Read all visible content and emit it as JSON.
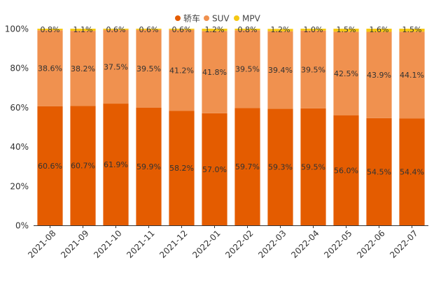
{
  "chart_data": {
    "type": "bar",
    "stacked": true,
    "percent_axis": true,
    "categories": [
      "2021-08",
      "2021-09",
      "2021-10",
      "2021-11",
      "2021-12",
      "2022-01",
      "2022-02",
      "2022-03",
      "2022-04",
      "2022-05",
      "2022-06",
      "2022-07"
    ],
    "series": [
      {
        "name": "轿车",
        "color": "#e45c00",
        "values": [
          60.6,
          60.7,
          61.9,
          59.9,
          58.2,
          57.0,
          59.7,
          59.3,
          59.5,
          56.0,
          54.5,
          54.4
        ],
        "labels": [
          "60.6%",
          "60.7%",
          "61.9%",
          "59.9%",
          "58.2%",
          "57.0%",
          "59.7%",
          "59.3%",
          "59.5%",
          "56.0%",
          "54.5%",
          "54.4%"
        ]
      },
      {
        "name": "SUV",
        "color": "#f0914f",
        "values": [
          38.6,
          38.2,
          37.5,
          39.5,
          41.2,
          41.8,
          39.5,
          39.4,
          39.5,
          42.5,
          43.9,
          44.1
        ],
        "labels": [
          "38.6%",
          "38.2%",
          "37.5%",
          "39.5%",
          "41.2%",
          "41.8%",
          "39.5%",
          "39.4%",
          "39.5%",
          "42.5%",
          "43.9%",
          "44.1%"
        ]
      },
      {
        "name": "MPV",
        "color": "#f5c814",
        "values": [
          0.8,
          1.1,
          0.6,
          0.6,
          0.6,
          1.2,
          0.8,
          1.2,
          1.0,
          1.5,
          1.6,
          1.5
        ],
        "labels": [
          "0.8%",
          "1.1%",
          "0.6%",
          "0.6%",
          "0.6%",
          "1.2%",
          "0.8%",
          "1.2%",
          "1.0%",
          "1.5%",
          "1.6%",
          "1.5%"
        ]
      }
    ],
    "ylim": [
      0,
      100
    ],
    "yticks": [
      "0%",
      "20%",
      "40%",
      "60%",
      "80%",
      "100%"
    ],
    "legend": "top-center",
    "grid": false,
    "title": "",
    "xlabel": "",
    "ylabel": ""
  }
}
